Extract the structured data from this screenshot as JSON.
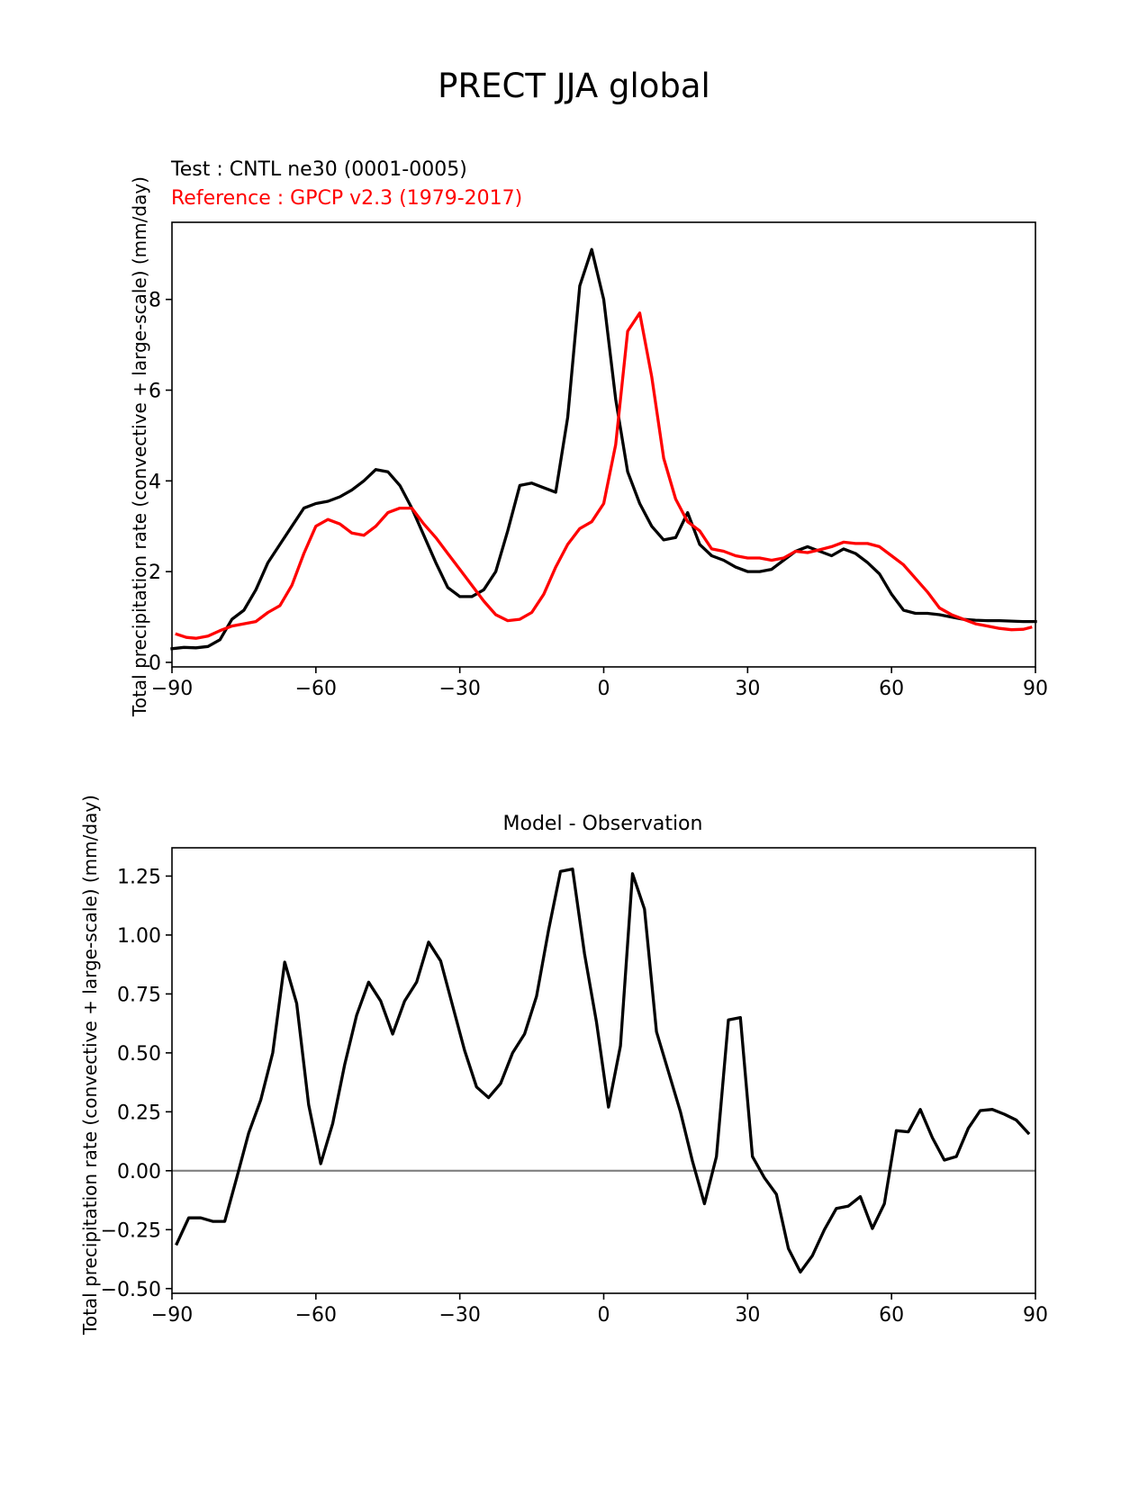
{
  "figure": {
    "title": "PRECT JJA global",
    "test_label": "Test : CNTL ne30 (0001-0005)",
    "reference_label": "Reference : GPCP v2.3 (1979-2017)",
    "colors": {
      "test": "#000000",
      "reference": "#ff0000",
      "zero_line": "#808080"
    }
  },
  "chart_data": [
    {
      "type": "line",
      "title": "",
      "xlabel": "",
      "ylabel": "Total precipitation rate (convective + large-scale) (mm/day)",
      "xlim": [
        -90,
        90
      ],
      "ylim": [
        -0.1,
        9.7
      ],
      "xticks": [
        -90,
        -60,
        -30,
        0,
        30,
        60,
        90
      ],
      "xtick_labels": [
        "−90",
        "−60",
        "−30",
        "0",
        "30",
        "60",
        "90"
      ],
      "yticks": [
        0,
        2,
        4,
        6,
        8
      ],
      "ytick_labels": [
        "0",
        "2",
        "4",
        "6",
        "8"
      ],
      "series": [
        {
          "name": "Test : CNTL ne30 (0001-0005)",
          "color": "#000000",
          "x": [
            -90,
            -87.5,
            -85,
            -82.5,
            -80,
            -77.5,
            -75,
            -72.5,
            -70,
            -67.5,
            -65,
            -62.5,
            -60,
            -57.5,
            -55,
            -52.5,
            -50,
            -47.5,
            -45,
            -42.5,
            -40,
            -37.5,
            -35,
            -32.5,
            -30,
            -27.5,
            -25,
            -22.5,
            -20,
            -17.5,
            -15,
            -12.5,
            -10,
            -7.5,
            -5,
            -2.5,
            0,
            2.5,
            5,
            7.5,
            10,
            12.5,
            15,
            17.5,
            20,
            22.5,
            25,
            27.5,
            30,
            32.5,
            35,
            37.5,
            40,
            42.5,
            45,
            47.5,
            50,
            52.5,
            55,
            57.5,
            60,
            62.5,
            65,
            67.5,
            70,
            72.5,
            75,
            77.5,
            80,
            82.5,
            85,
            87.5,
            90
          ],
          "y": [
            0.3,
            0.33,
            0.32,
            0.35,
            0.5,
            0.95,
            1.15,
            1.6,
            2.2,
            2.6,
            3.0,
            3.4,
            3.5,
            3.55,
            3.65,
            3.8,
            4.0,
            4.25,
            4.2,
            3.9,
            3.4,
            2.8,
            2.2,
            1.65,
            1.45,
            1.45,
            1.6,
            2.0,
            2.9,
            3.9,
            3.95,
            3.85,
            3.75,
            5.4,
            8.3,
            9.1,
            8.0,
            5.8,
            4.2,
            3.5,
            3.0,
            2.7,
            2.75,
            3.3,
            2.6,
            2.35,
            2.25,
            2.1,
            2.0,
            2.0,
            2.05,
            2.25,
            2.45,
            2.55,
            2.45,
            2.35,
            2.5,
            2.4,
            2.2,
            1.95,
            1.5,
            1.15,
            1.08,
            1.08,
            1.05,
            1.0,
            0.95,
            0.93,
            0.92,
            0.92,
            0.91,
            0.9,
            0.9
          ]
        },
        {
          "name": "Reference : GPCP v2.3 (1979-2017)",
          "color": "#ff0000",
          "x": [
            -89,
            -87,
            -85,
            -82.5,
            -80,
            -77.5,
            -75,
            -72.5,
            -70,
            -67.5,
            -65,
            -62.5,
            -60,
            -57.5,
            -55,
            -52.5,
            -50,
            -47.5,
            -45,
            -42.5,
            -40,
            -37.5,
            -35,
            -32.5,
            -30,
            -27.5,
            -25,
            -22.5,
            -20,
            -17.5,
            -15,
            -12.5,
            -10,
            -7.5,
            -5,
            -2.5,
            0,
            2.5,
            5,
            7.5,
            10,
            12.5,
            15,
            17.5,
            20,
            22.5,
            25,
            27.5,
            30,
            32.5,
            35,
            37.5,
            40,
            42.5,
            45,
            47.5,
            50,
            52.5,
            55,
            57.5,
            60,
            62.5,
            65,
            67.5,
            70,
            72.5,
            75,
            77.5,
            80,
            82.5,
            85,
            87.5,
            89
          ],
          "y": [
            0.62,
            0.55,
            0.53,
            0.58,
            0.7,
            0.8,
            0.85,
            0.9,
            1.1,
            1.25,
            1.7,
            2.4,
            3.0,
            3.15,
            3.05,
            2.85,
            2.8,
            3.0,
            3.3,
            3.4,
            3.4,
            3.05,
            2.75,
            2.4,
            2.05,
            1.7,
            1.35,
            1.05,
            0.92,
            0.95,
            1.1,
            1.5,
            2.1,
            2.6,
            2.95,
            3.1,
            3.5,
            4.8,
            7.3,
            7.7,
            6.3,
            4.5,
            3.6,
            3.1,
            2.9,
            2.5,
            2.45,
            2.35,
            2.3,
            2.3,
            2.25,
            2.3,
            2.45,
            2.42,
            2.48,
            2.55,
            2.65,
            2.62,
            2.62,
            2.55,
            2.35,
            2.15,
            1.85,
            1.55,
            1.2,
            1.05,
            0.95,
            0.85,
            0.8,
            0.75,
            0.72,
            0.73,
            0.77
          ]
        }
      ]
    },
    {
      "type": "line",
      "title": "Model - Observation",
      "xlabel": "",
      "ylabel": "Total precipitation rate (convective + large-scale) (mm/day)",
      "xlim": [
        -90,
        90
      ],
      "ylim": [
        -0.52,
        1.37
      ],
      "xticks": [
        -90,
        -60,
        -30,
        0,
        30,
        60,
        90
      ],
      "xtick_labels": [
        "−90",
        "−60",
        "−30",
        "0",
        "30",
        "60",
        "90"
      ],
      "yticks": [
        -0.5,
        -0.25,
        0,
        0.25,
        0.5,
        0.75,
        1.0,
        1.25
      ],
      "ytick_labels": [
        "−0.50",
        "−0.25",
        "0.00",
        "0.25",
        "0.50",
        "0.75",
        "1.00",
        "1.25"
      ],
      "reference_line": {
        "y": 0,
        "color": "#808080"
      },
      "series": [
        {
          "name": "Model - Observation",
          "color": "#000000",
          "x": [
            -89,
            -86.5,
            -84,
            -81.5,
            -79,
            -76.5,
            -74,
            -71.5,
            -69,
            -66.5,
            -64,
            -61.5,
            -59,
            -56.5,
            -54,
            -51.5,
            -49,
            -46.5,
            -44,
            -41.5,
            -39,
            -36.5,
            -34,
            -31.5,
            -29,
            -26.5,
            -24,
            -21.5,
            -19,
            -16.5,
            -14,
            -11.5,
            -9,
            -6.5,
            -4,
            -1.5,
            1,
            3.5,
            6,
            8.5,
            11,
            13.5,
            16,
            18.5,
            21,
            23.5,
            26,
            28.5,
            31,
            33.5,
            36,
            38.5,
            41,
            43.5,
            46,
            48.5,
            51,
            53.5,
            56,
            58.5,
            61,
            63.5,
            66,
            68.5,
            71,
            73.5,
            76,
            78.5,
            81,
            83.5,
            86,
            88.5
          ],
          "y": [
            -0.31,
            -0.2,
            -0.2,
            -0.215,
            -0.215,
            -0.03,
            0.16,
            0.3,
            0.5,
            0.885,
            0.71,
            0.28,
            0.03,
            0.2,
            0.45,
            0.66,
            0.8,
            0.72,
            0.58,
            0.72,
            0.8,
            0.97,
            0.89,
            0.7,
            0.51,
            0.355,
            0.31,
            0.37,
            0.5,
            0.58,
            0.74,
            1.02,
            1.27,
            1.28,
            0.92,
            0.63,
            0.27,
            0.53,
            1.26,
            1.11,
            0.59,
            0.42,
            0.25,
            0.04,
            -0.14,
            0.06,
            0.64,
            0.65,
            0.06,
            -0.03,
            -0.1,
            -0.33,
            -0.43,
            -0.36,
            -0.25,
            -0.16,
            -0.15,
            -0.11,
            -0.245,
            -0.14,
            0.17,
            0.165,
            0.26,
            0.14,
            0.045,
            0.06,
            0.18,
            0.255,
            0.26,
            0.24,
            0.215,
            0.16
          ]
        }
      ]
    }
  ]
}
